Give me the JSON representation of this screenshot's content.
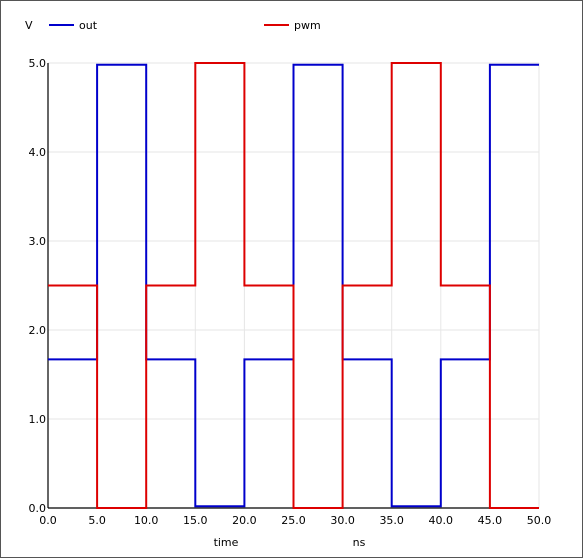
{
  "chart_data": {
    "type": "line",
    "ylabel": "V",
    "xlabel": "time",
    "xunit": "ns",
    "xlim": [
      0,
      50
    ],
    "ylim": [
      0,
      5
    ],
    "xticks": [
      0,
      5,
      10,
      15,
      20,
      25,
      30,
      35,
      40,
      45,
      50
    ],
    "xtick_labels": [
      "0.0",
      "5.0",
      "10.0",
      "15.0",
      "20.0",
      "25.0",
      "30.0",
      "35.0",
      "40.0",
      "45.0",
      "50.0"
    ],
    "yticks": [
      0,
      1,
      2,
      3,
      4,
      5
    ],
    "ytick_labels": [
      "0.0",
      "1.0",
      "2.0",
      "3.0",
      "4.0",
      "5.0"
    ],
    "grid": true,
    "legend_position": "top",
    "series": [
      {
        "name": "out",
        "color": "#0000cc",
        "step": true,
        "x": [
          0,
          5,
          10,
          15,
          20,
          25,
          30,
          35,
          40,
          45,
          50
        ],
        "y": [
          1.67,
          4.98,
          1.67,
          0.02,
          1.67,
          4.98,
          1.67,
          0.02,
          1.67,
          4.98,
          4.98
        ]
      },
      {
        "name": "pwm",
        "color": "#dd0000",
        "step": true,
        "x": [
          0,
          5,
          10,
          15,
          20,
          25,
          30,
          35,
          40,
          45,
          50
        ],
        "y": [
          2.5,
          0,
          2.5,
          5,
          2.5,
          0,
          2.5,
          5,
          2.5,
          0,
          0
        ]
      }
    ]
  }
}
